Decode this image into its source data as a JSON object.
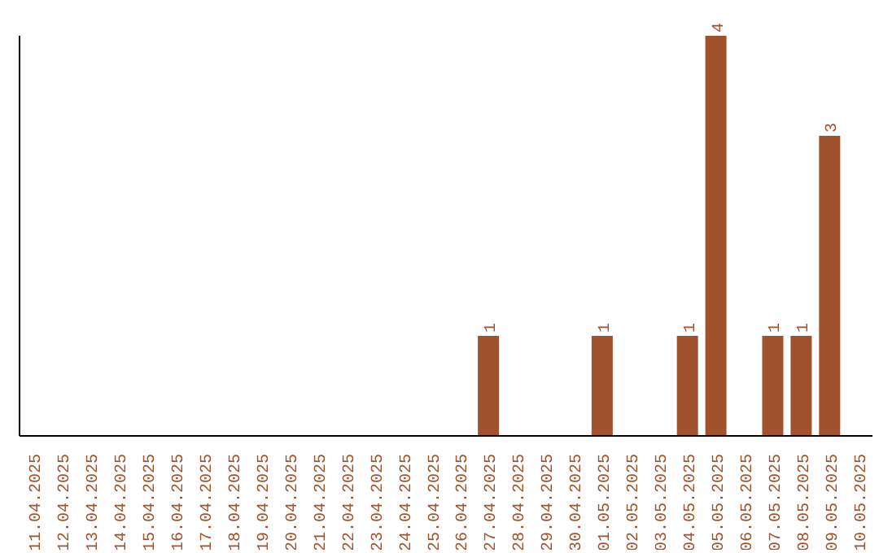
{
  "chart_data": {
    "type": "bar",
    "categories": [
      "11.04.2025",
      "12.04.2025",
      "13.04.2025",
      "14.04.2025",
      "15.04.2025",
      "16.04.2025",
      "17.04.2025",
      "18.04.2025",
      "19.04.2025",
      "20.04.2025",
      "21.04.2025",
      "22.04.2025",
      "23.04.2025",
      "24.04.2025",
      "25.04.2025",
      "26.04.2025",
      "27.04.2025",
      "28.04.2025",
      "29.04.2025",
      "30.04.2025",
      "01.05.2025",
      "02.05.2025",
      "03.05.2025",
      "04.05.2025",
      "05.05.2025",
      "06.05.2025",
      "07.05.2025",
      "08.05.2025",
      "09.05.2025",
      "10.05.2025"
    ],
    "values": [
      null,
      null,
      null,
      null,
      null,
      null,
      null,
      null,
      null,
      null,
      null,
      null,
      null,
      null,
      null,
      null,
      1,
      null,
      null,
      null,
      1,
      null,
      null,
      1,
      4,
      null,
      1,
      1,
      3,
      null
    ],
    "data_labels": true,
    "color": "#a0522d",
    "tick_labels": "x",
    "grid": false
  }
}
